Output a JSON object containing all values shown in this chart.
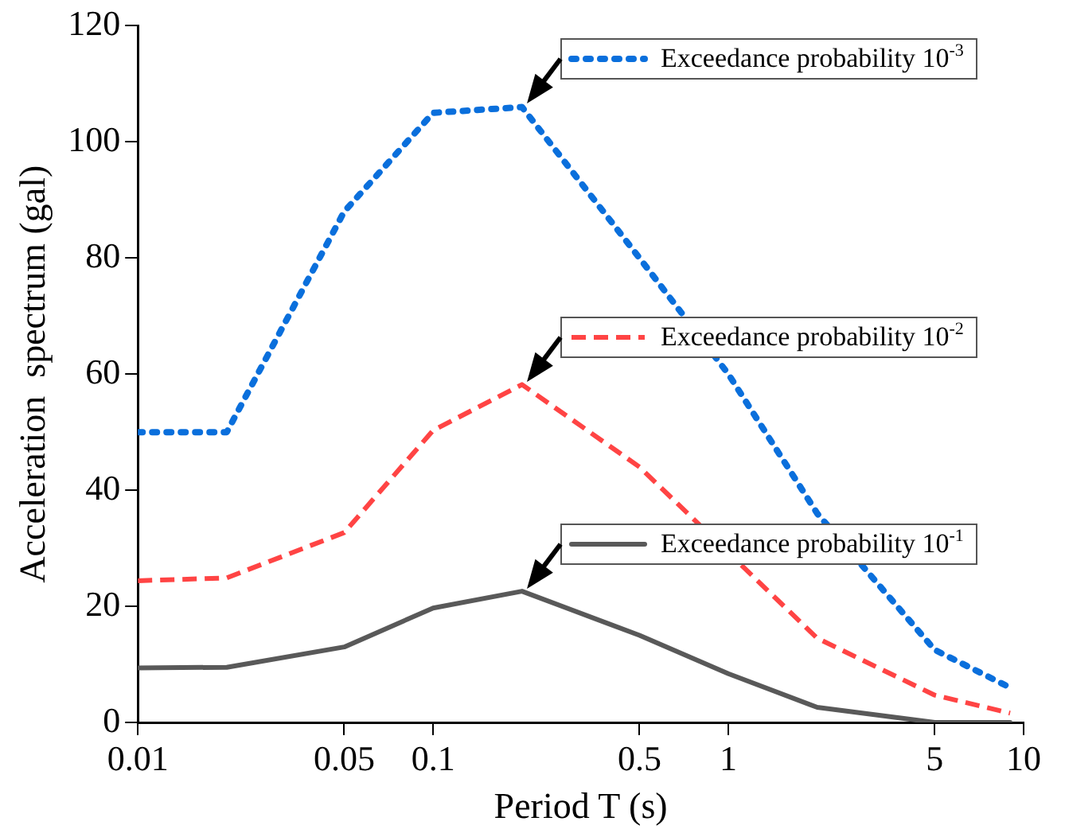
{
  "chart_data": {
    "type": "line",
    "xlabel": "Period T (s)",
    "ylabel": "Acceleration  spectrum (gal)",
    "log": "x",
    "legend": "right",
    "x": [
      0.01,
      0.02,
      0.05,
      0.1,
      0.2,
      0.5,
      1,
      2,
      5,
      9
    ],
    "xlim": [
      0.01,
      10
    ],
    "xticks": [
      0.01,
      0.05,
      0.1,
      0.5,
      1,
      5,
      10
    ],
    "ylim": [
      0,
      120
    ],
    "yticks": [
      0,
      20,
      40,
      60,
      80,
      100,
      120
    ],
    "grid": false,
    "marker": "none",
    "series": [
      {
        "name": "Exceedance probability 10$^{-3}$",
        "color": "#0a6fdc",
        "line_style": "dotted",
        "values": [
          50,
          50,
          88,
          105,
          106,
          80,
          60,
          36,
          12.5,
          6
        ]
      },
      {
        "name": "Exceedance probability 10$^{-2}$",
        "color": "#ff4444",
        "line_style": "dashed",
        "values": [
          24.4,
          24.9,
          32.7,
          50.3,
          58.2,
          44,
          null,
          14.5,
          4.7,
          1.6
        ]
      },
      {
        "name": "Exceedance probability 10$^{-1}$",
        "color": "#595959",
        "line_style": "solid",
        "values": [
          9.4,
          9.5,
          13,
          19.7,
          22.6,
          15,
          8.4,
          2.6,
          0,
          0
        ]
      }
    ]
  }
}
